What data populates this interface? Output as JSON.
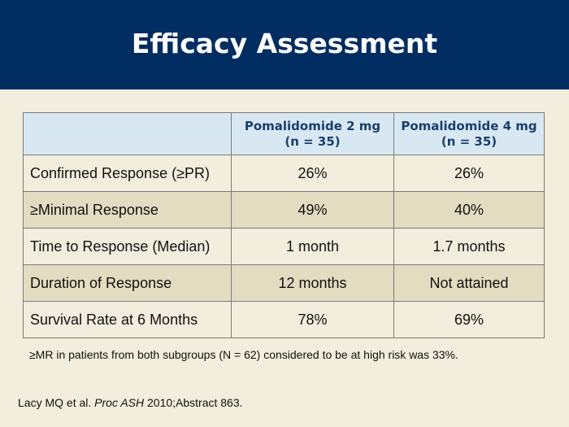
{
  "slide": {
    "title": "Efficacy Assessment"
  },
  "table": {
    "headers": [
      {
        "line1": "Pomalidomide 2 mg",
        "line2": "(n = 35)"
      },
      {
        "line1": "Pomalidomide 4 mg",
        "line2": "(n = 35)"
      }
    ],
    "rows": [
      {
        "label": "Confirmed Response (≥PR)",
        "values": [
          "26%",
          "26%"
        ]
      },
      {
        "label": "≥Minimal Response",
        "values": [
          "49%",
          "40%"
        ]
      },
      {
        "label": "Time to Response (Median)",
        "values": [
          "1 month",
          "1.7 months"
        ]
      },
      {
        "label": "Duration of Response",
        "values": [
          "12 months",
          "Not attained"
        ]
      },
      {
        "label": "Survival Rate at 6 Months",
        "values": [
          "78%",
          "69%"
        ]
      }
    ]
  },
  "footnote": "≥MR in patients from both subgroups (N = 62) considered to be at high risk was 33%.",
  "citation": {
    "authors": "Lacy MQ et al.",
    "journal": "Proc ASH",
    "details": "2010;Abstract 863."
  },
  "colors": {
    "header_bg": "#002d62",
    "slide_bg": "#f2eddc",
    "table_header_bg": "#d8e8f2",
    "row_alt_bg": "#e3dcc0",
    "header_text": "#1a3e6e"
  }
}
